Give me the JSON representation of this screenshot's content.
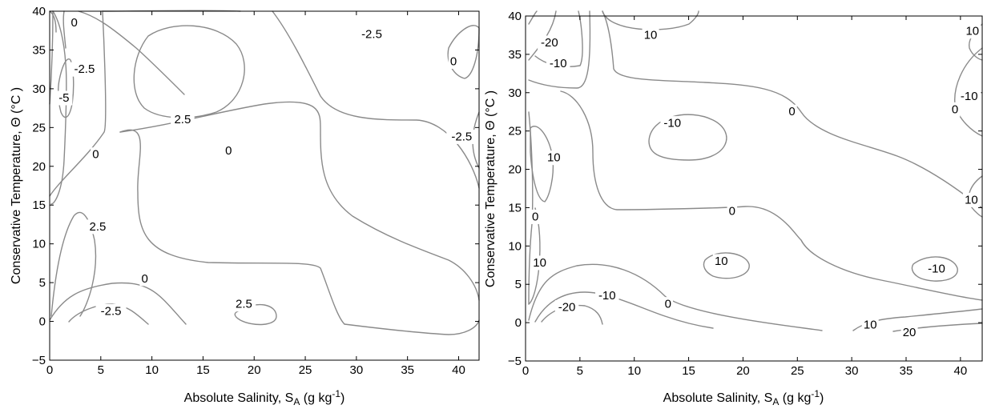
{
  "chart_data": [
    {
      "type": "contour",
      "xlabel_main": "Absolute Salinity, S",
      "xlabel_sub": "A",
      "xlabel_unit": " (g kg",
      "xlabel_sup": "-1",
      "xlabel_end": ")",
      "ylabel": "Conservative Temperature, Θ (°C )",
      "xlim": [
        0,
        42
      ],
      "ylim": [
        -5,
        40
      ],
      "xticks": [
        0,
        5,
        10,
        15,
        20,
        25,
        30,
        35,
        40
      ],
      "yticks": [
        -5,
        0,
        5,
        10,
        15,
        20,
        25,
        30,
        35,
        40
      ],
      "ytick_labels": [
        "−5",
        "0",
        "5",
        "10",
        "15",
        "20",
        "25",
        "30",
        "35",
        "40"
      ],
      "contour_labels": [
        {
          "text": "0",
          "x": 2.4,
          "y": 38.5
        },
        {
          "text": "-2.5",
          "x": 3.4,
          "y": 32.5
        },
        {
          "text": "-5",
          "x": 1.4,
          "y": 28.8
        },
        {
          "text": "2.5",
          "x": 13.0,
          "y": 26.0
        },
        {
          "text": "0",
          "x": 17.5,
          "y": 22.0
        },
        {
          "text": "-2.5",
          "x": 31.5,
          "y": 37.0
        },
        {
          "text": "0",
          "x": 39.5,
          "y": 33.5
        },
        {
          "text": "-2.5",
          "x": 40.3,
          "y": 23.8
        },
        {
          "text": "0",
          "x": 4.5,
          "y": 21.5
        },
        {
          "text": "2.5",
          "x": 4.7,
          "y": 12.2
        },
        {
          "text": "0",
          "x": 9.3,
          "y": 5.5
        },
        {
          "text": "-2.5",
          "x": 6.0,
          "y": 1.3
        },
        {
          "text": "2.5",
          "x": 19.0,
          "y": 2.2
        }
      ]
    },
    {
      "type": "contour",
      "xlabel_main": "Absolute Salinity, S",
      "xlabel_sub": "A",
      "xlabel_unit": " (g kg",
      "xlabel_sup": "-1",
      "xlabel_end": ")",
      "ylabel": "Conservative Temperature, Θ (°C )",
      "xlim": [
        0,
        42
      ],
      "ylim": [
        -5,
        40
      ],
      "xticks": [
        0,
        5,
        10,
        15,
        20,
        25,
        30,
        35,
        40
      ],
      "yticks": [
        -5,
        0,
        5,
        10,
        15,
        20,
        25,
        30,
        35,
        40
      ],
      "ytick_labels": [
        "−5",
        "0",
        "5",
        "10",
        "15",
        "20",
        "25",
        "30",
        "35",
        "40"
      ],
      "contour_labels": [
        {
          "text": "-20",
          "x": 2.2,
          "y": 36.5
        },
        {
          "text": "-10",
          "x": 3.0,
          "y": 33.8
        },
        {
          "text": "10",
          "x": 11.5,
          "y": 37.5
        },
        {
          "text": "0",
          "x": 24.5,
          "y": 27.5
        },
        {
          "text": "-10",
          "x": 13.5,
          "y": 26.0
        },
        {
          "text": "10",
          "x": 2.6,
          "y": 21.5
        },
        {
          "text": "0",
          "x": 19.0,
          "y": 14.5
        },
        {
          "text": "0",
          "x": 0.9,
          "y": 13.8
        },
        {
          "text": "10",
          "x": 1.3,
          "y": 7.8
        },
        {
          "text": "10",
          "x": 18.0,
          "y": 8.0
        },
        {
          "text": "-10",
          "x": 37.8,
          "y": 7.0
        },
        {
          "text": "-20",
          "x": 3.8,
          "y": 2.0
        },
        {
          "text": "-10",
          "x": 7.5,
          "y": 3.5
        },
        {
          "text": "0",
          "x": 13.1,
          "y": 2.4
        },
        {
          "text": "10",
          "x": 31.7,
          "y": -0.3
        },
        {
          "text": "20",
          "x": 35.3,
          "y": -1.3
        },
        {
          "text": "10",
          "x": 41.1,
          "y": 38.0
        },
        {
          "text": "-10",
          "x": 40.8,
          "y": 29.5
        },
        {
          "text": "0",
          "x": 39.5,
          "y": 27.8
        },
        {
          "text": "10",
          "x": 41.0,
          "y": 16.0
        }
      ]
    }
  ]
}
